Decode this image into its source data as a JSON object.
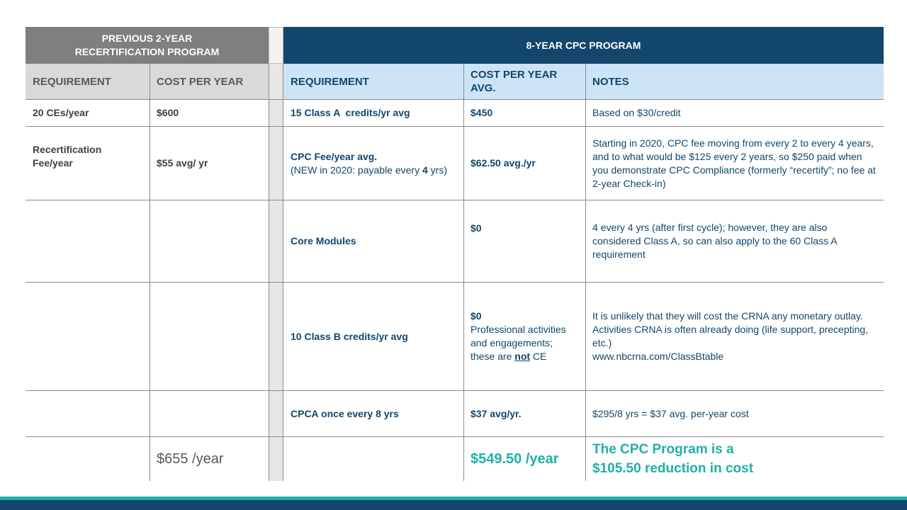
{
  "header": {
    "previous_line1": "PREVIOUS 2-YEAR",
    "previous_line2": "RECERTIFICATION PROGRAM",
    "cpc": "8-YEAR CPC PROGRAM"
  },
  "columns": {
    "prev_requirement": "REQUIREMENT",
    "prev_cost": "COST PER YEAR",
    "cpc_requirement": "REQUIREMENT",
    "cpc_cost_line1": "COST PER YEAR",
    "cpc_cost_line2": "AVG.",
    "cpc_notes": "NOTES"
  },
  "rows": [
    {
      "prev_req": "20 CEs/year",
      "prev_cost": "$600",
      "cpc_req": "15 Class A  credits/yr avg",
      "cpc_cost": "$450",
      "notes": "Based on $30/credit"
    },
    {
      "prev_req_line1": "Recertification",
      "prev_req_line2": "Fee/year",
      "prev_cost": "$55 avg/ yr",
      "cpc_req": "CPC Fee/year avg.",
      "cpc_req_sub_a": "(NEW in 2020: payable every ",
      "cpc_req_sub_b": "4",
      "cpc_req_sub_c": " yrs)",
      "cpc_cost": "$62.50 avg./yr",
      "notes": "Starting in 2020, CPC fee moving from every 2 to every 4 years, and to what would be $125 every 2 years, so $250 paid when you demonstrate CPC Compliance (formerly “recertify”; no fee at 2-year Check-in)"
    },
    {
      "cpc_req": "Core Modules",
      "cpc_cost": "$0",
      "notes": "4 every 4 yrs (after first cycle); however, they are also considered Class A, so can also apply to the 60 Class A requirement"
    },
    {
      "cpc_req": "10 Class B credits/yr avg",
      "cpc_cost": "$0",
      "cpc_cost_sub_a": "Professional activities and engagements; these are ",
      "cpc_cost_sub_b": "not",
      "cpc_cost_sub_c": " CE",
      "notes_line1": "It is unlikely that they will cost the CRNA any monetary outlay.",
      "notes_line2": "Activities CRNA is often already doing (life support, precepting, etc.)",
      "notes_line3": "www.nbcrna.com/ClassBtable"
    },
    {
      "cpc_req": "CPCA once every 8 yrs",
      "cpc_cost": "$37 avg/yr.",
      "notes": "$295/8 yrs = $37 avg. per-year cost"
    }
  ],
  "totals": {
    "prev": "$655 /year",
    "cpc": "$549.50 /year",
    "summary_line1": "The CPC Program is a",
    "summary_line2": "$105.50 reduction in cost"
  },
  "colors": {
    "navy": "#12466b",
    "teal": "#1fb0a9",
    "gray_header": "#7f7f7f",
    "light_blue": "#cde4f6"
  }
}
